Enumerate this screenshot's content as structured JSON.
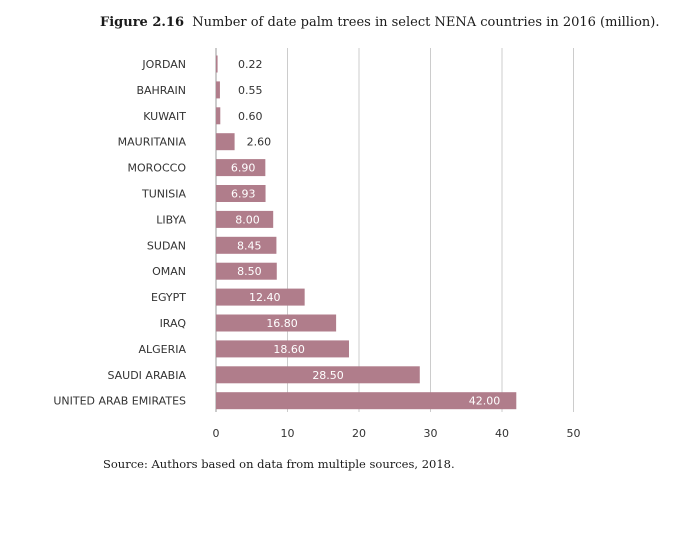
{
  "figure": {
    "number": "Figure 2.16",
    "caption": "Number of date palm trees in select NENA countries in 2016 (million).",
    "source": "Source: Authors based on data from multiple sources, 2018."
  },
  "colors": {
    "bar": "#b07d8b",
    "grid": "#cccccc",
    "axis": "#999999"
  },
  "chart_data": {
    "type": "bar",
    "orientation": "horizontal",
    "title": "Number of date palm trees in select NENA countries in 2016 (million).",
    "xlabel": "",
    "ylabel": "",
    "xlim": [
      0,
      50
    ],
    "xticks": [
      0,
      10,
      20,
      30,
      40,
      50
    ],
    "grid": true,
    "categories": [
      "JORDAN",
      "BAHRAIN",
      "KUWAIT",
      "MAURITANIA",
      "MOROCCO",
      "TUNISIA",
      "LIBYA",
      "SUDAN",
      "OMAN",
      "EGYPT",
      "IRAQ",
      "ALGERIA",
      "SAUDI ARABIA",
      "UNITED ARAB EMIRATES"
    ],
    "values": [
      0.22,
      0.55,
      0.6,
      2.6,
      6.9,
      6.93,
      8.0,
      8.45,
      8.5,
      12.4,
      16.8,
      18.6,
      28.5,
      42.0
    ],
    "value_labels": [
      "0.22",
      "0.55",
      "0.60",
      "2.60",
      "6.90",
      "6.93",
      "8.00",
      "8.45",
      "8.50",
      "12.40",
      "16.80",
      "18.60",
      "28.50",
      "42.00"
    ]
  }
}
